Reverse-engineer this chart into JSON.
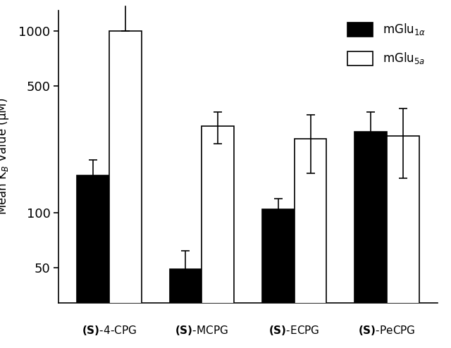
{
  "categories": [
    "(S)-4-CPG",
    "(S)-MCPG",
    "(S)-ECPG",
    "(S)-PeCPG"
  ],
  "mglu1a_values": [
    160,
    49,
    105,
    280
  ],
  "mglu5a_values": [
    1000,
    300,
    255,
    265
  ],
  "mglu1a_errors": [
    35,
    13,
    15,
    80
  ],
  "mglu5a_errors_upper": [
    0,
    60,
    90,
    110
  ],
  "mglu5a_errors_lower": [
    0,
    60,
    90,
    110
  ],
  "mglu1a_color": "#000000",
  "mglu5a_color": "#ffffff",
  "mglu5a_edgecolor": "#000000",
  "bar_width": 0.35,
  "ylabel": "Mean K$_B$ Value (μM)",
  "ylim_min": 32,
  "ylim_max": 1300,
  "yticks": [
    50,
    100,
    500,
    1000
  ],
  "ytick_labels": [
    "50",
    "100",
    "500",
    "1000"
  ],
  "background_color": "#ffffff",
  "figsize": [
    6.4,
    4.94
  ],
  "dpi": 100
}
